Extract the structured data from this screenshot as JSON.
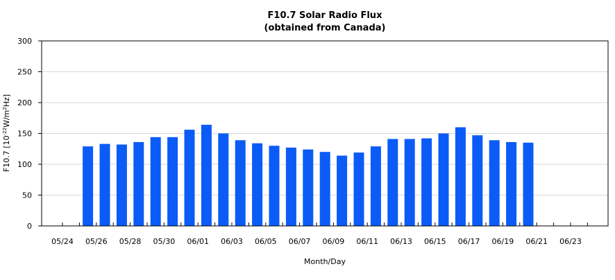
{
  "chart_data": {
    "type": "bar",
    "title": "F10.7 Solar Radio Flux",
    "subtitle": "(obtained from Canada)",
    "xlabel": "Month/Day",
    "ylabel": "F10.7 [10",
    "ylabel_exp": "-22",
    "ylabel_mid": "W/m",
    "ylabel_exp2": "2",
    "ylabel_end": "Hz]",
    "ylim": [
      0,
      300
    ],
    "yticks": [
      0,
      50,
      100,
      150,
      200,
      250,
      300
    ],
    "grid": true,
    "categories": [
      "05/24",
      "05/25",
      "05/26",
      "05/27",
      "05/28",
      "05/29",
      "05/30",
      "05/31",
      "06/01",
      "06/02",
      "06/03",
      "06/04",
      "06/05",
      "06/06",
      "06/07",
      "06/08",
      "06/09",
      "06/10",
      "06/11",
      "06/12",
      "06/13",
      "06/14",
      "06/15",
      "06/16",
      "06/17",
      "06/18",
      "06/19",
      "06/20",
      "06/21",
      "06/22",
      "06/23",
      "06/24"
    ],
    "values": [
      null,
      129,
      133,
      132,
      136,
      144,
      144,
      156,
      164,
      150,
      139,
      134,
      130,
      127,
      124,
      120,
      114,
      119,
      129,
      141,
      141,
      142,
      150,
      160,
      147,
      139,
      136,
      135,
      null,
      null,
      null,
      null
    ],
    "xtick_labels": [
      "05/24",
      "05/26",
      "05/28",
      "05/30",
      "06/01",
      "06/03",
      "06/05",
      "06/07",
      "06/09",
      "06/11",
      "06/13",
      "06/15",
      "06/17",
      "06/19",
      "06/21",
      "06/23"
    ],
    "bar_color": "#0b5cf7"
  }
}
